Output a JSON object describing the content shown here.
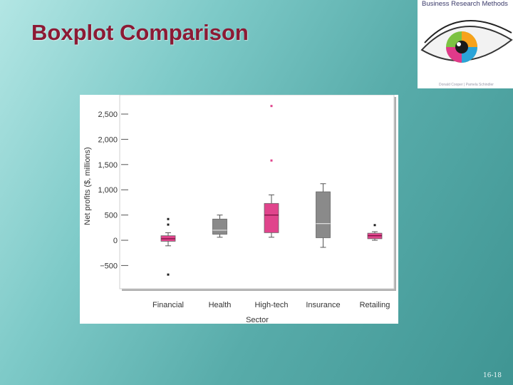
{
  "slide": {
    "title": "Boxplot Comparison",
    "page_number": "16-18",
    "background": [
      "#b3e6e4",
      "#3f9593"
    ],
    "title_color": "#8c1a34"
  },
  "logo": {
    "title": "Business Research Methods",
    "authors": "Donald Cooper | Pamela Schindler",
    "icon": "eye-icon"
  },
  "chart_data": {
    "type": "boxplot",
    "title": "",
    "xlabel": "Sector",
    "ylabel": "Net profits ($, millions)",
    "categories": [
      "Financial",
      "Health",
      "High-tech",
      "Insurance",
      "Retailing"
    ],
    "ylim": [
      -900,
      2700
    ],
    "yticks": [
      -500,
      0,
      500,
      1000,
      1500,
      2000,
      2500
    ],
    "ytick_labels": [
      "−500",
      "0",
      "500",
      "1,000",
      "1,500",
      "2,000",
      "2,500"
    ],
    "grid": false,
    "boxes": [
      {
        "category": "Financial",
        "whisker_low": -110,
        "q1": -20,
        "median": 30,
        "q3": 90,
        "whisker_high": 150,
        "outliers": [
          310,
          420,
          -680
        ],
        "color": "#e0448c"
      },
      {
        "category": "Health",
        "whisker_low": 60,
        "q1": 120,
        "median": 200,
        "q3": 420,
        "whisker_high": 500,
        "outliers": [],
        "color": "#8a8a8a"
      },
      {
        "category": "High-tech",
        "whisker_low": 60,
        "q1": 150,
        "median": 500,
        "q3": 730,
        "whisker_high": 900,
        "outliers": [
          1580,
          2660
        ],
        "color": "#e0448c"
      },
      {
        "category": "Insurance",
        "whisker_low": -140,
        "q1": 50,
        "median": 330,
        "q3": 960,
        "whisker_high": 1120,
        "outliers": [],
        "color": "#8a8a8a"
      },
      {
        "category": "Retailing",
        "whisker_low": 0,
        "q1": 30,
        "median": 90,
        "q3": 140,
        "whisker_high": 170,
        "outliers": [
          300
        ],
        "color": "#e0448c"
      }
    ]
  }
}
